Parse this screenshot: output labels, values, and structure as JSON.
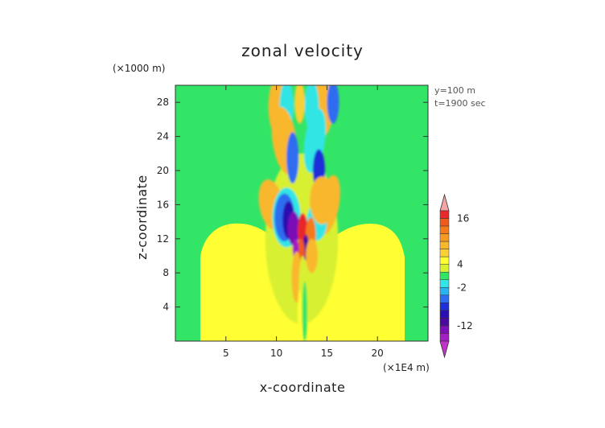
{
  "chart_data": {
    "type": "heatmap",
    "title": "zonal velocity",
    "xlabel": "x-coordinate",
    "ylabel": "z-coordinate",
    "x_unit": "(×1E4 m)",
    "y_unit": "(×1000 m)",
    "annotations": [
      "y=100 m",
      "t=1900 sec"
    ],
    "xlim": [
      0,
      25
    ],
    "ylim": [
      0,
      30
    ],
    "x_ticks": [
      5,
      10,
      15,
      20
    ],
    "y_ticks": [
      4,
      8,
      12,
      16,
      20,
      24,
      28
    ],
    "colorbar": {
      "tick_labels": [
        "16",
        "4",
        "-2",
        "-12"
      ],
      "levels": [
        {
          "value": 18,
          "color": "#f4a6a6"
        },
        {
          "value": 16,
          "color": "#e8282b"
        },
        {
          "value": 14,
          "color": "#f05a1e"
        },
        {
          "value": 12,
          "color": "#f47a1c"
        },
        {
          "value": 10,
          "color": "#f79a24"
        },
        {
          "value": 8,
          "color": "#f9b72d"
        },
        {
          "value": 6,
          "color": "#fbd035"
        },
        {
          "value": 4,
          "color": "#ffff33"
        },
        {
          "value": 2,
          "color": "#d8f032"
        },
        {
          "value": 0,
          "color": "#33e566"
        },
        {
          "value": -2,
          "color": "#33e5e5"
        },
        {
          "value": -4,
          "color": "#2bb3f0"
        },
        {
          "value": -6,
          "color": "#2f6df0"
        },
        {
          "value": -8,
          "color": "#1f2fd8"
        },
        {
          "value": -10,
          "color": "#2a10b0"
        },
        {
          "value": -12,
          "color": "#4a0a9e"
        },
        {
          "value": -14,
          "color": "#7a10b5"
        },
        {
          "value": -16,
          "color": "#a31fc2"
        },
        {
          "value": -18,
          "color": "#c233c9"
        }
      ]
    },
    "background_color": "#33e566",
    "features": [
      {
        "kind": "positive-dome",
        "x_range": [
          2.5,
          22.5
        ],
        "z_top": 14,
        "value": 4
      },
      {
        "kind": "plume-core",
        "x_range": [
          9,
          16
        ],
        "z_range": [
          5,
          30
        ],
        "value": -12
      },
      {
        "kind": "plume-positive",
        "x_range": [
          12,
          14
        ],
        "z_range": [
          8,
          16
        ],
        "value": 16
      }
    ]
  }
}
